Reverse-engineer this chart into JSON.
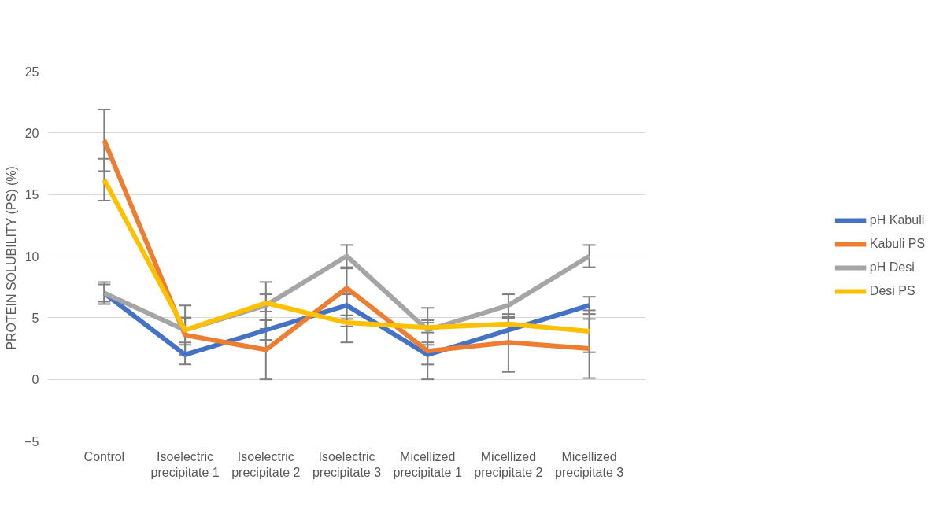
{
  "chart_data": {
    "type": "line",
    "ylabel": "PROTEIN SOLUBILITY  (PS) (%)",
    "categories": [
      "Control",
      "Isoelectric precipitate 1",
      "Isoelectric precipitate 2",
      "Isoelectric precipitate 3",
      "Micellized precipitate 1",
      "Micellized precipitate 2",
      "Micellized precipitate 3"
    ],
    "series": [
      {
        "name": "pH Kabuli",
        "color": "#4472c4",
        "values": [
          7,
          2,
          4,
          6,
          2,
          4,
          6
        ],
        "errors": [
          0.7,
          0.8,
          0.8,
          [
            5.2,
            6.9
          ],
          0.8,
          1.0,
          0.7
        ]
      },
      {
        "name": "Kabuli PS",
        "color": "#ed7d31",
        "values": [
          19.4,
          3.6,
          2.4,
          7.4,
          2.3,
          3,
          2.5
        ],
        "errors": [
          2.5,
          1.4,
          2.4,
          [
            3.0,
            9.0
          ],
          [
            0,
            4.8
          ],
          [
            0.6,
            5.3
          ],
          2.4
        ]
      },
      {
        "name": "pH Desi",
        "color": "#a5a5a5",
        "values": [
          7,
          4,
          6,
          10,
          4,
          6,
          10
        ],
        "errors": [
          0.9,
          2,
          1.9,
          0.9,
          [
            3.0,
            5.8
          ],
          0.9,
          0.9
        ]
      },
      {
        "name": "Desi PS",
        "color": "#ffc000",
        "values": [
          16.2,
          4,
          6.2,
          4.6,
          4.2,
          4.5,
          3.9
        ],
        "errors": [
          1.7,
          1.0,
          0.7,
          0.3,
          0.4,
          0.5,
          1.7
        ]
      }
    ],
    "ylim": [
      -5,
      25
    ],
    "yticks": [
      -5,
      0,
      5,
      10,
      15,
      20,
      25
    ],
    "grid": "y",
    "legend": "right",
    "marker": "none",
    "line_style": "solid"
  }
}
